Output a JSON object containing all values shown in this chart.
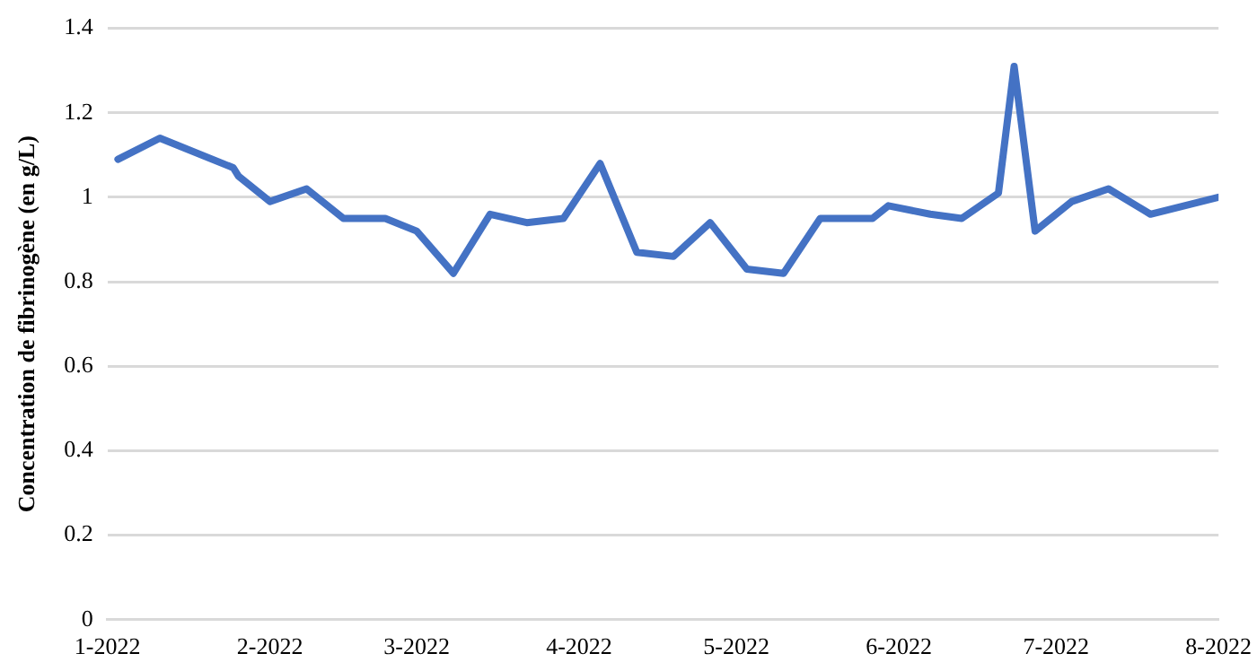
{
  "chart_data": {
    "type": "line",
    "ylabel": "Concentration de fibrinogène (en g/L)",
    "x": [
      "2022-01-03",
      "2022-01-11",
      "2022-01-25",
      "2022-01-26",
      "2022-02-01",
      "2022-02-08",
      "2022-02-15",
      "2022-02-23",
      "2022-03-01",
      "2022-03-08",
      "2022-03-15",
      "2022-03-22",
      "2022-03-29",
      "2022-04-05",
      "2022-04-12",
      "2022-04-19",
      "2022-04-26",
      "2022-05-03",
      "2022-05-10",
      "2022-05-17",
      "2022-05-27",
      "2022-05-30",
      "2022-06-07",
      "2022-06-13",
      "2022-06-20",
      "2022-06-23",
      "2022-06-27",
      "2022-07-04",
      "2022-07-11",
      "2022-07-19",
      "2022-08-01"
    ],
    "series": [
      {
        "color": "#4472c4",
        "values": [
          1.09,
          1.14,
          1.07,
          1.05,
          0.99,
          1.02,
          0.95,
          0.95,
          0.92,
          0.82,
          0.96,
          0.94,
          0.95,
          1.08,
          0.87,
          0.86,
          0.94,
          0.83,
          0.82,
          0.95,
          0.95,
          0.98,
          0.96,
          0.95,
          1.01,
          1.31,
          0.92,
          0.99,
          1.02,
          0.96,
          1.0
        ]
      }
    ],
    "xlim": [
      "2022-01-01",
      "2022-08-01"
    ],
    "xticks": [
      {
        "value": "2022-01-01",
        "label": "1-2022"
      },
      {
        "value": "2022-02-01",
        "label": "2-2022"
      },
      {
        "value": "2022-03-01",
        "label": "3-2022"
      },
      {
        "value": "2022-04-01",
        "label": "4-2022"
      },
      {
        "value": "2022-05-01",
        "label": "5-2022"
      },
      {
        "value": "2022-06-01",
        "label": "6-2022"
      },
      {
        "value": "2022-07-01",
        "label": "7-2022"
      },
      {
        "value": "2022-08-01",
        "label": "8-2022"
      }
    ],
    "ylim": [
      0,
      1.4
    ],
    "yticks": [
      0,
      0.2,
      0.4,
      0.6,
      0.8,
      1,
      1.2,
      1.4
    ],
    "grid": "y",
    "legend": false,
    "marker": "none",
    "line_style": "solid"
  }
}
